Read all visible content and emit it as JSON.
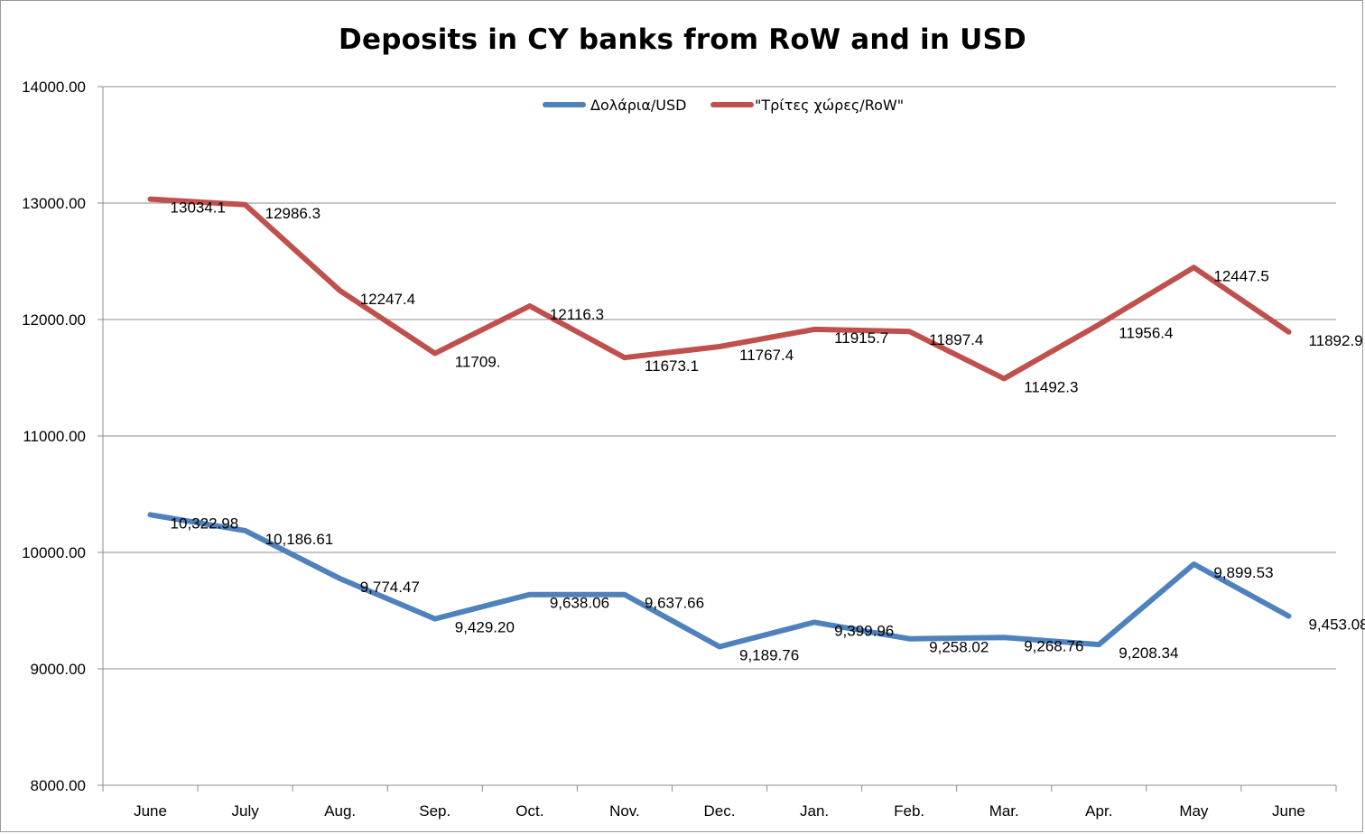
{
  "chart_data": {
    "type": "line",
    "title": "Deposits in CY banks from RoW and in USD",
    "xlabel": "",
    "ylabel": "",
    "categories": [
      "June",
      "July",
      "Aug.",
      "Sep.",
      "Oct.",
      "Nov.",
      "Dec.",
      "Jan.",
      "Feb.",
      "Mar.",
      "Apr.",
      "May",
      "June"
    ],
    "ylim": [
      8000,
      14000
    ],
    "yticks": [
      8000,
      9000,
      10000,
      11000,
      12000,
      13000,
      14000
    ],
    "ytick_labels": [
      "8000.00",
      "9000.00",
      "10000.00",
      "11000.00",
      "12000.00",
      "13000.00",
      "14000.00"
    ],
    "grid": true,
    "legend_position": "top-center",
    "series": [
      {
        "name": "Δολάρια/USD",
        "color": "#4f81bd",
        "values": [
          10322.98,
          10186.61,
          9774.47,
          9429.2,
          9638.06,
          9637.66,
          9189.76,
          9399.96,
          9258.02,
          9268.76,
          9208.34,
          9899.53,
          9453.08
        ],
        "labels": [
          "10,322.98",
          "10,186.61",
          "9,774.47",
          "9,429.20",
          "9,638.06",
          "9,637.66",
          "9,189.76",
          "9,399.96",
          "9,258.02",
          "9,268.76",
          "9,208.34",
          "9,899.53",
          "9,453.08"
        ]
      },
      {
        "name": "\"Τρίτες χώρες/RoW\"",
        "color": "#c0504d",
        "values": [
          13034.1,
          12986.3,
          12247.4,
          11709.0,
          12116.3,
          11673.1,
          11767.4,
          11915.7,
          11897.4,
          11492.3,
          11956.4,
          12447.5,
          11892.9
        ],
        "labels": [
          "13034.1",
          "12986.3",
          "12247.4",
          "11709.",
          "12116.3",
          "11673.1",
          "11767.4",
          "11915.7",
          "11897.4",
          "11492.3",
          "11956.4",
          "12447.5",
          "11892.9"
        ]
      }
    ]
  }
}
